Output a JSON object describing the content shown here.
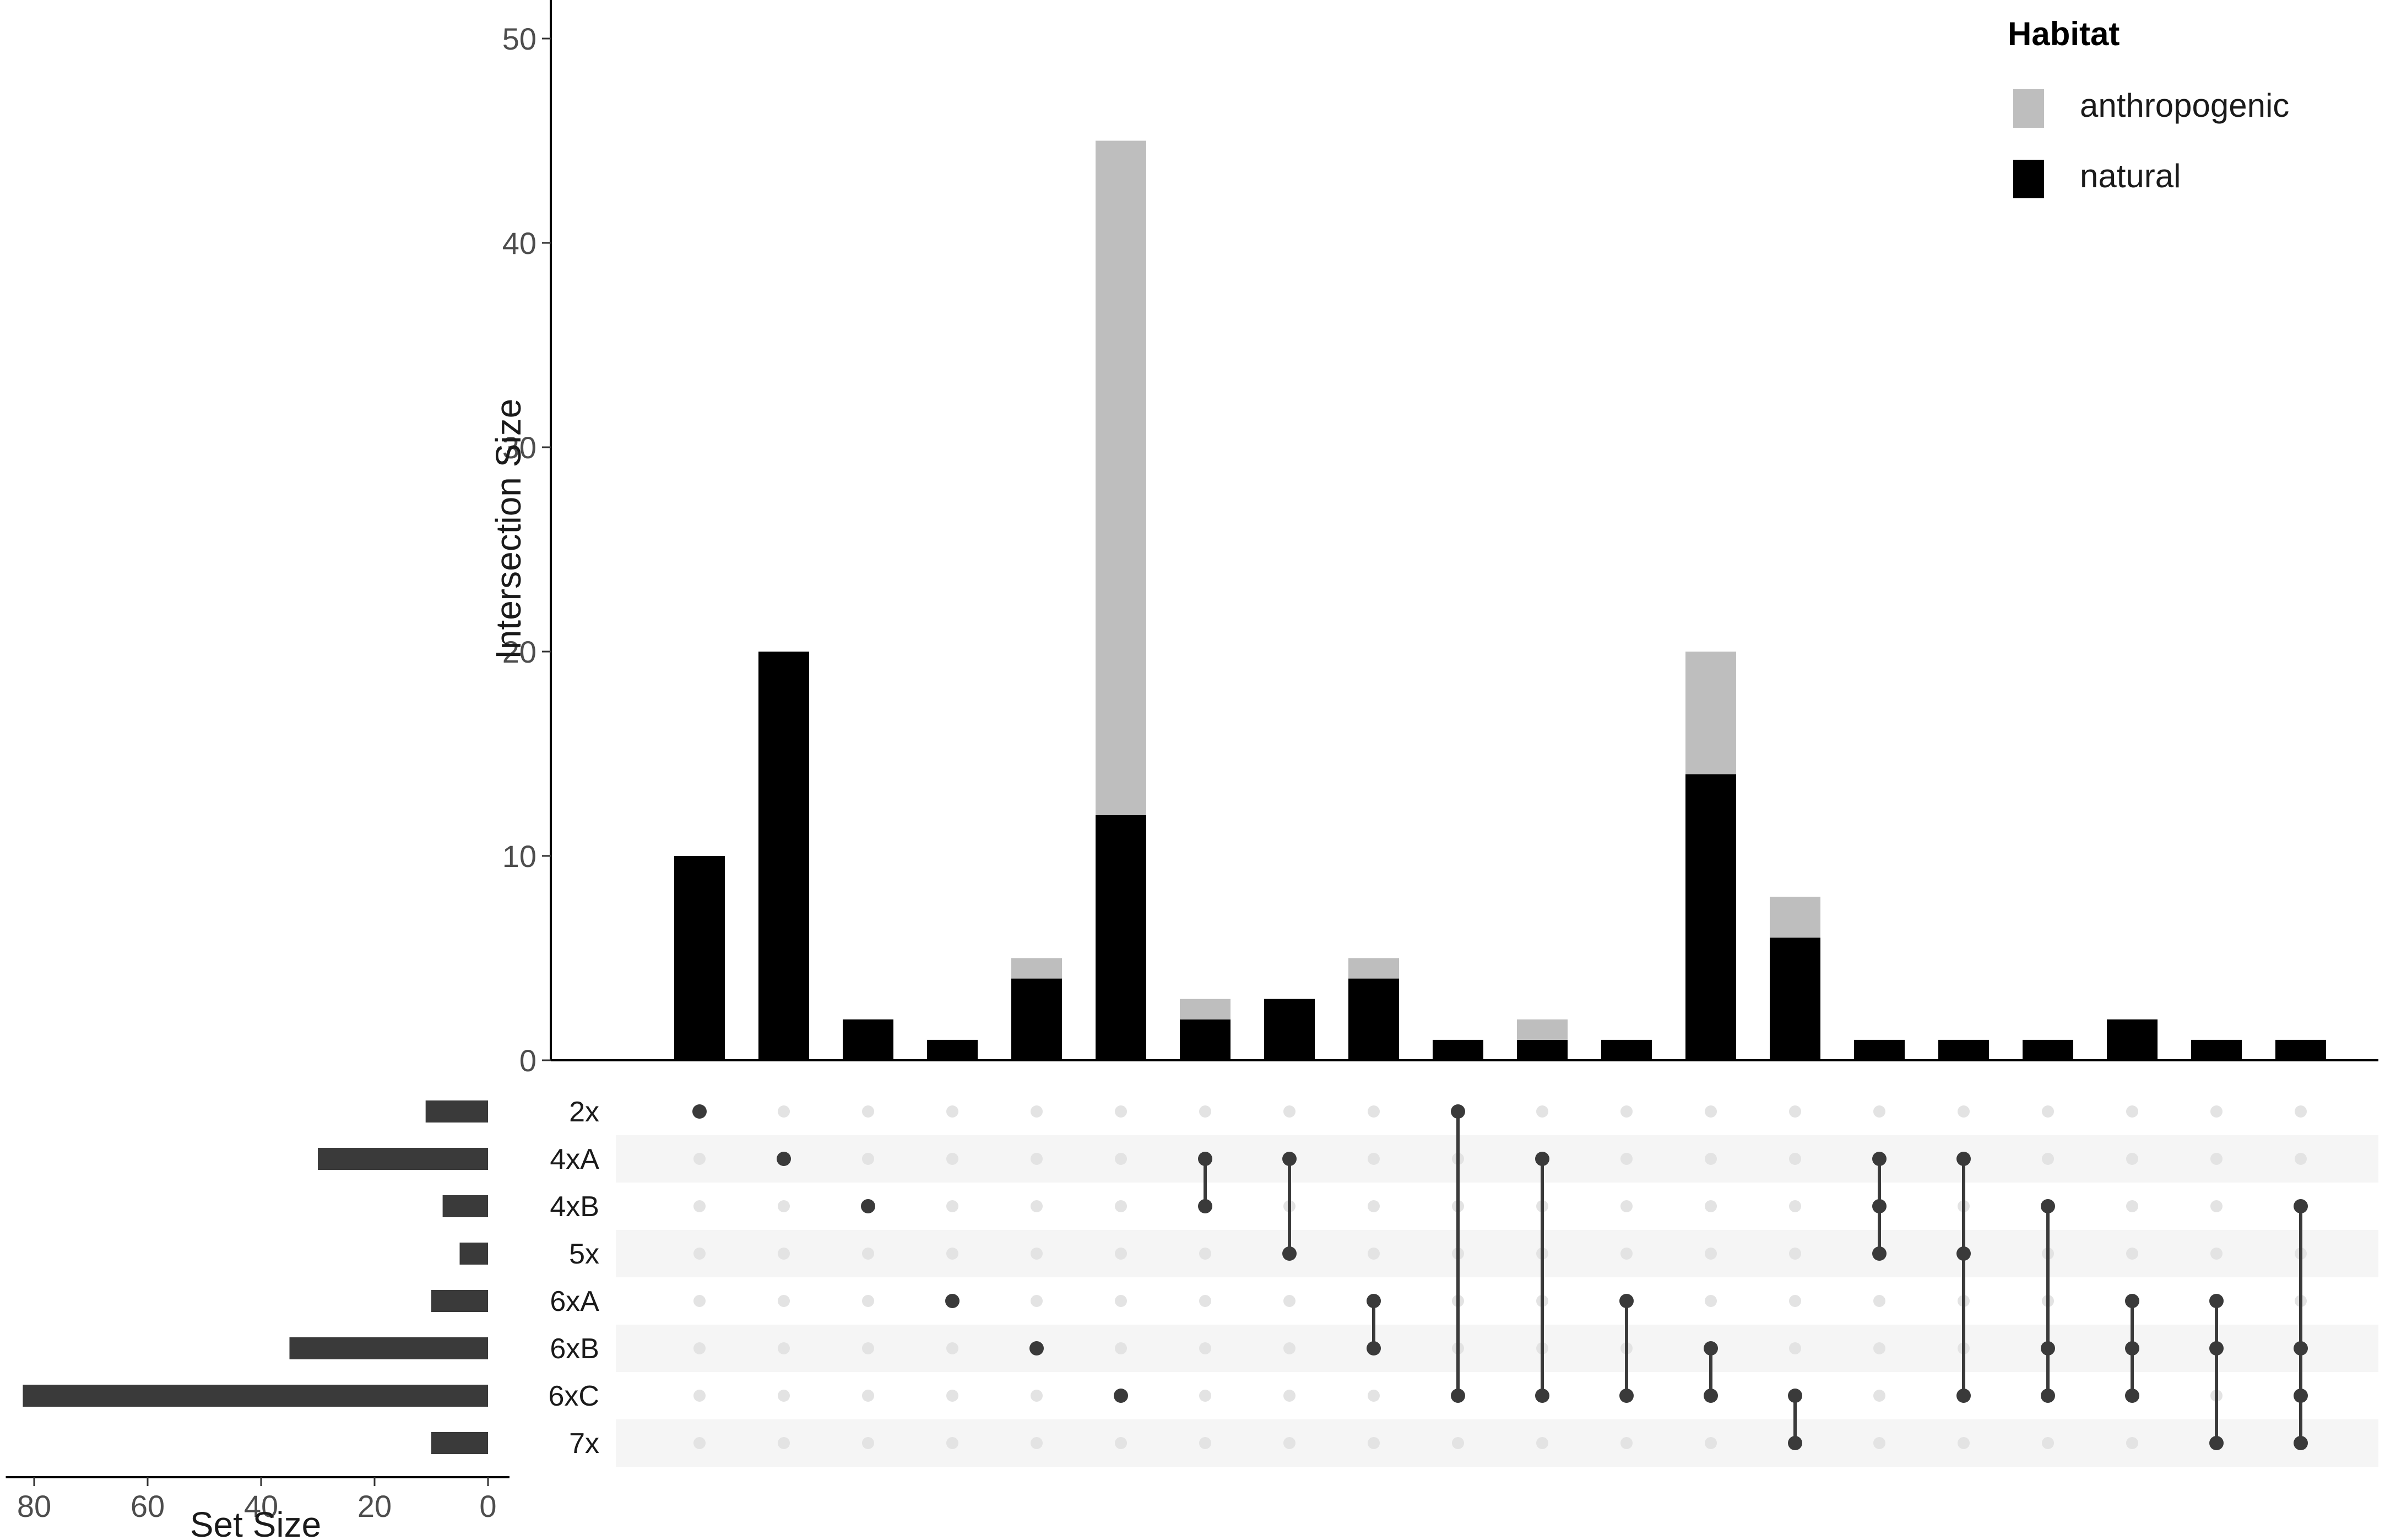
{
  "chart_data": {
    "type": "bar",
    "subtype": "upset",
    "title": "",
    "ylabel": "Intersection Size",
    "xlabel": "",
    "ylim": [
      0,
      52
    ],
    "yticks": [
      0,
      10,
      20,
      30,
      40,
      50
    ],
    "legend": {
      "title": "Habitat",
      "position": "top-right",
      "entries": [
        {
          "name": "anthropogenic",
          "color": "#bebebe"
        },
        {
          "name": "natural",
          "color": "#000000"
        }
      ]
    },
    "series": [
      {
        "name": "natural",
        "color": "#000000",
        "values": [
          10,
          20,
          2,
          1,
          4,
          12,
          2,
          3,
          4,
          1,
          1,
          1,
          14,
          6,
          1,
          1,
          1,
          2,
          1,
          1
        ]
      },
      {
        "name": "anthropogenic",
        "color": "#bebebe",
        "values": [
          0,
          0,
          0,
          0,
          1,
          33,
          1,
          0,
          1,
          0,
          1,
          0,
          6,
          2,
          0,
          0,
          0,
          0,
          0,
          0
        ]
      }
    ],
    "sets": [
      "2x",
      "4xA",
      "4xB",
      "5x",
      "6xA",
      "6xB",
      "6xC",
      "7x"
    ],
    "set_sizes": [
      11,
      30,
      8,
      5,
      10,
      35,
      82,
      10
    ],
    "set_size_label": "Set Size",
    "set_size_xlim": [
      0,
      85
    ],
    "set_size_ticks": [
      80,
      60,
      40,
      20,
      0
    ],
    "intersections": [
      [
        "2x"
      ],
      [
        "4xA"
      ],
      [
        "4xB"
      ],
      [
        "6xA"
      ],
      [
        "6xB"
      ],
      [
        "6xC"
      ],
      [
        "4xA",
        "4xB"
      ],
      [
        "4xA",
        "5x"
      ],
      [
        "6xA",
        "6xB"
      ],
      [
        "2x",
        "6xC"
      ],
      [
        "4xA",
        "6xC"
      ],
      [
        "6xA",
        "6xC"
      ],
      [
        "6xB",
        "6xC"
      ],
      [
        "6xC",
        "7x"
      ],
      [
        "4xA",
        "4xB",
        "5x"
      ],
      [
        "4xA",
        "5x",
        "6xC"
      ],
      [
        "4xB",
        "6xB",
        "6xC"
      ],
      [
        "6xA",
        "6xB",
        "6xC"
      ],
      [
        "6xA",
        "6xB",
        "7x"
      ],
      [
        "4xB",
        "6xB",
        "6xC",
        "7x"
      ]
    ]
  }
}
